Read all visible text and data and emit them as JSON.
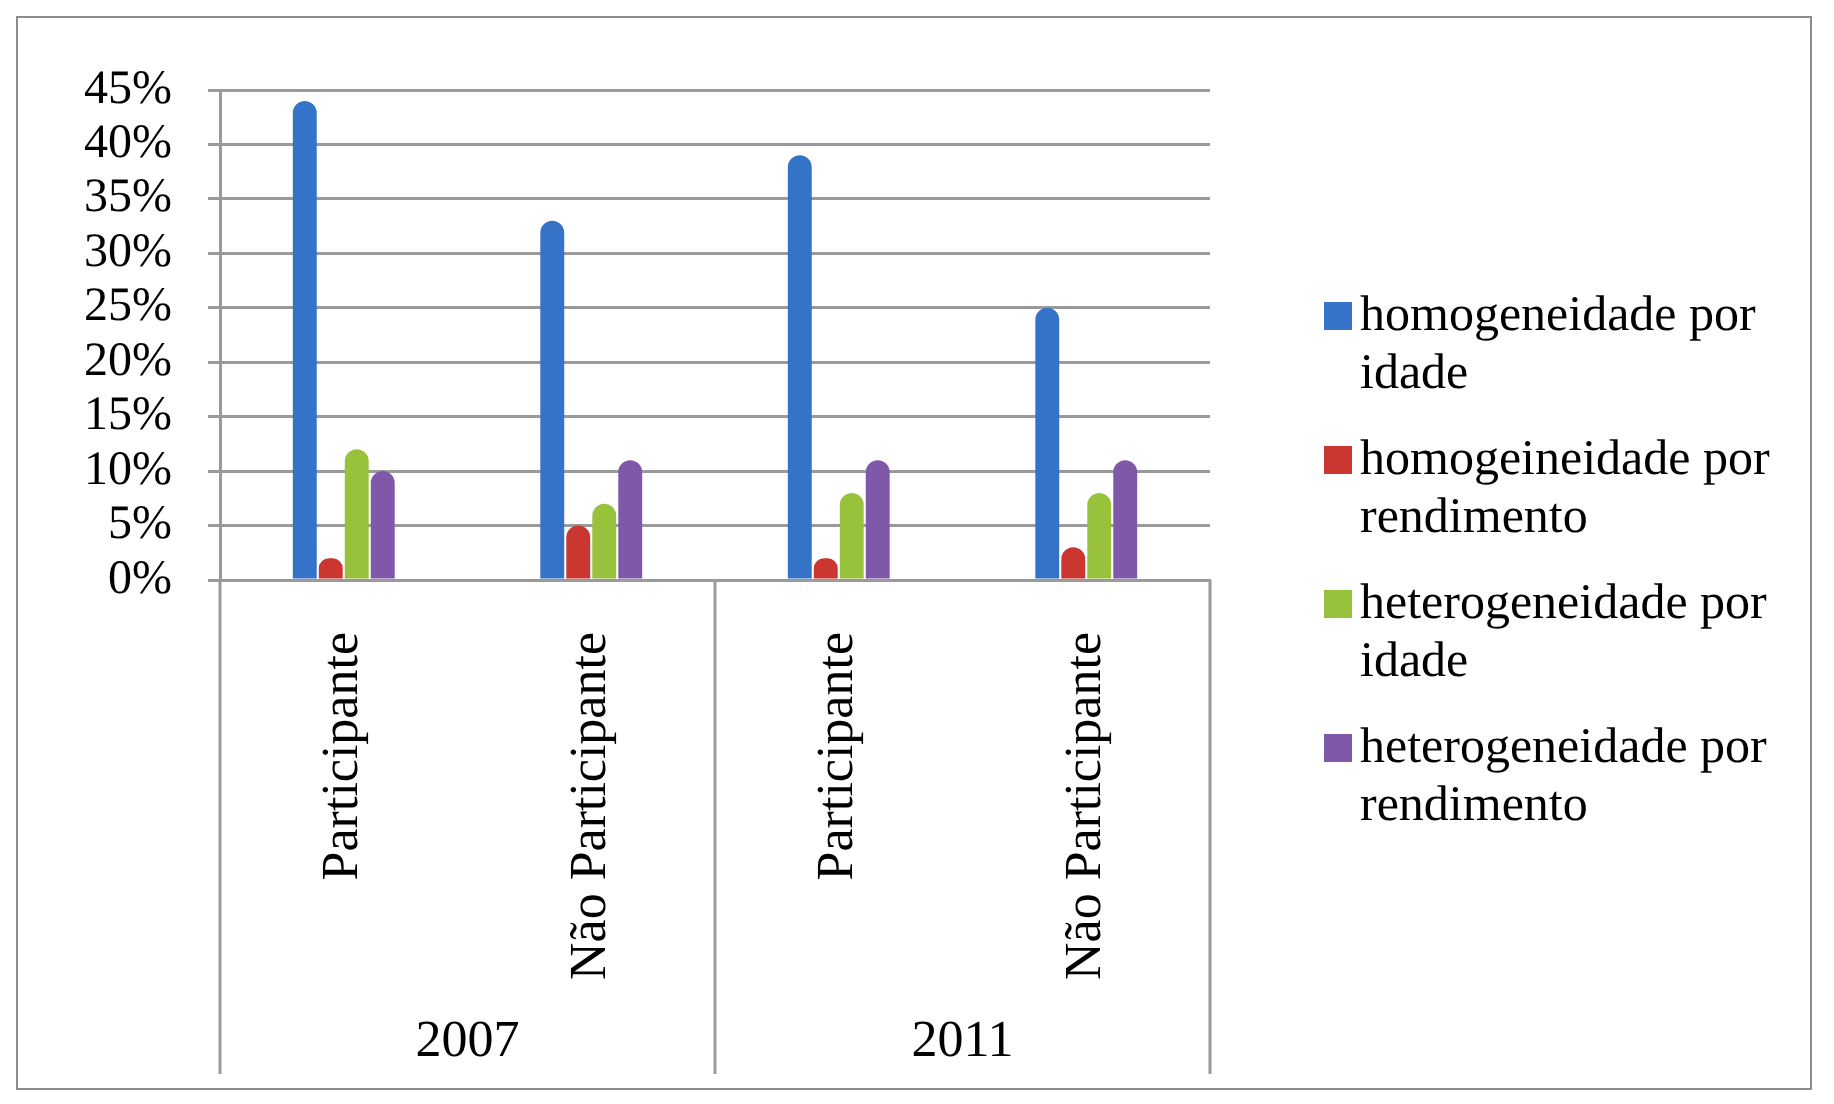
{
  "chart_data": {
    "type": "bar",
    "categories": [
      "Participante",
      "Não Participante",
      "Participante",
      "Não Participante"
    ],
    "series": [
      {
        "name": "homogeneidade por idade",
        "color": "#3473c8",
        "values": [
          44,
          33,
          39,
          25
        ]
      },
      {
        "name": "homogeineidade por rendimento",
        "color": "#cc3630",
        "values": [
          2,
          5,
          2,
          3
        ]
      },
      {
        "name": "heterogeneidade por idade",
        "color": "#98c23c",
        "values": [
          12,
          7,
          8,
          8
        ]
      },
      {
        "name": "heterogeneidade por rendimento",
        "color": "#7f58aa",
        "values": [
          10,
          11,
          11,
          11
        ]
      }
    ],
    "ylim": [
      0,
      45
    ],
    "yticks": [
      {
        "value": 0,
        "label": "0%"
      },
      {
        "value": 5,
        "label": "5%"
      },
      {
        "value": 10,
        "label": "10%"
      },
      {
        "value": 15,
        "label": "15%"
      },
      {
        "value": 20,
        "label": "20%"
      },
      {
        "value": 25,
        "label": "25%"
      },
      {
        "value": 30,
        "label": "30%"
      },
      {
        "value": 35,
        "label": "35%"
      },
      {
        "value": 40,
        "label": "40%"
      },
      {
        "value": 45,
        "label": "45%"
      }
    ],
    "grid": "y",
    "legend": "right",
    "annotations": [
      "2007",
      "2011"
    ]
  }
}
